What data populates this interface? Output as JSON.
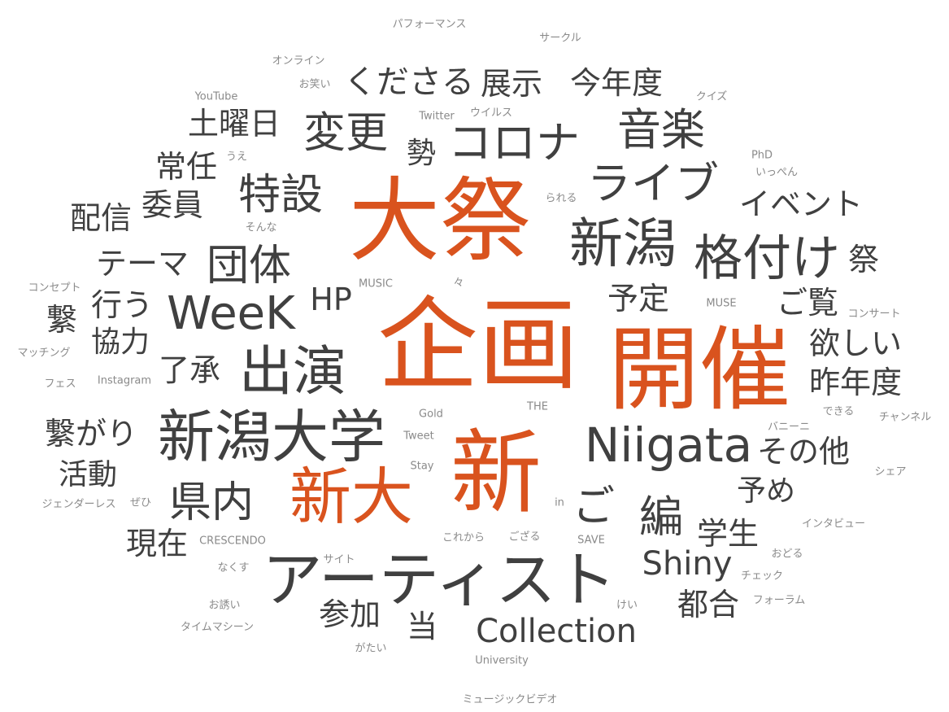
{
  "colors": {
    "accent": "#d9531e",
    "main": "#404040",
    "light": "#8a8a8a"
  },
  "words": [
    "企画",
    "開催",
    "大祭",
    "新",
    "新大",
    "新潟大学",
    "アーティスト",
    "出演",
    "Niigata",
    "格付け",
    "新潟",
    "WeeK",
    "団体",
    "特設",
    "コロナ",
    "ライブ",
    "音楽",
    "変更",
    "県内",
    "Collection",
    "ご",
    "編",
    "Shiny",
    "くださる",
    "展示",
    "今年度",
    "土曜日",
    "イベント",
    "配信",
    "委員",
    "常任",
    "テーマ",
    "行う",
    "協力",
    "了承",
    "HP",
    "予定",
    "ご覧",
    "欲しい",
    "昨年度",
    "その他",
    "予め",
    "学生",
    "都合",
    "参加",
    "当",
    "現在",
    "活動",
    "繋がり",
    "繋",
    "勢",
    "祭",
    "パフォーマンス",
    "サークル",
    "オンライン",
    "お笑い",
    "YouTube",
    "Twitter",
    "ウイルス",
    "クイズ",
    "PhD",
    "いっぺん",
    "うえ",
    "られる",
    "そんな",
    "MUSIC",
    "々",
    "MUSE",
    "コンセプト",
    "マッチング",
    "フェス",
    "Instagram",
    "コンサート",
    "Gold",
    "THE",
    "Tweet",
    "できる",
    "バニーニ",
    "チャンネル",
    "Stay",
    "シェア",
    "ジェンダーレス",
    "ぜひ",
    "in",
    "インタビュー",
    "CRESCENDO",
    "これから",
    "ござる",
    "SAVE",
    "サイト",
    "おどる",
    "なくす",
    "チェック",
    "お誘い",
    "けい",
    "フォーラム",
    "タイムマシーン",
    "がたい",
    "University",
    "ミュージックビデオ"
  ]
}
